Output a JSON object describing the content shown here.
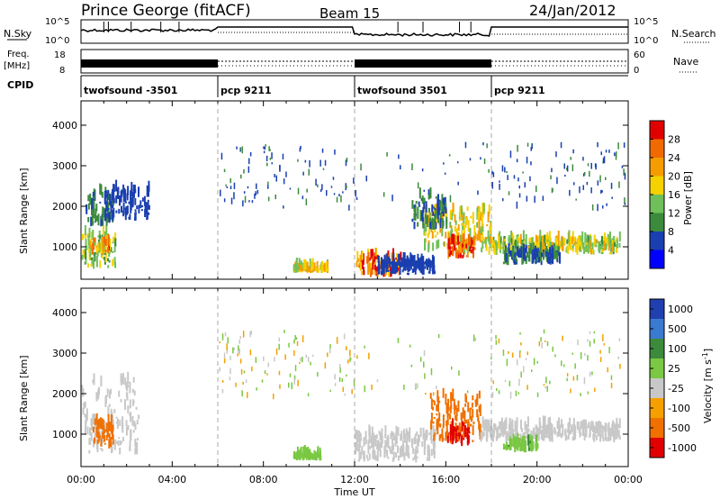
{
  "header": {
    "title": "Prince George (fitACF)",
    "beam": "Beam 15",
    "date": "24/Jan/2012"
  },
  "top_panels": {
    "nsky_label": "N.Sky",
    "nsky_ticks": [
      "10^5",
      "10^0"
    ],
    "nsearch_label": "N.Search",
    "freq_label_1": "Freq.",
    "freq_label_2": "[MHz]",
    "freq_ticks": [
      "18",
      "8"
    ],
    "nave_label": "Nave",
    "nave_ticks": [
      "60",
      "0"
    ],
    "cpid_label": "CPID"
  },
  "cpid_segments": [
    {
      "label": "twofsound -3501",
      "start_hour": 0
    },
    {
      "label": "pcp 9211",
      "start_hour": 6
    },
    {
      "label": "twofsound 3501",
      "start_hour": 12
    },
    {
      "label": "pcp 9211",
      "start_hour": 18
    }
  ],
  "x_axis": {
    "label": "Time UT",
    "ticks": [
      "00:00",
      "04:00",
      "08:00",
      "12:00",
      "16:00",
      "20:00",
      "00:00"
    ],
    "range_hours": [
      0,
      24
    ]
  },
  "chart_data": [
    {
      "type": "heatmap",
      "title": "",
      "xlabel": "Time UT",
      "ylabel": "Slant Range [km]",
      "yticks": [
        "1000",
        "2000",
        "3000",
        "4000"
      ],
      "xlim": [
        0,
        24
      ],
      "ylim": [
        200,
        4600
      ],
      "colorbar": {
        "label": "Power [dB]",
        "ticks": [
          "4",
          "8",
          "12",
          "16",
          "20",
          "24",
          "28"
        ],
        "range": [
          0,
          32
        ],
        "colors": [
          "#0000ff",
          "#1a3fb0",
          "#3c8a3c",
          "#6fbf5a",
          "#f5d100",
          "#f59c00",
          "#f06a00",
          "#e00000"
        ]
      },
      "regions": [
        {
          "t": [
            0.0,
            1.5
          ],
          "r": [
            450,
            1300
          ],
          "value": 14
        },
        {
          "t": [
            0.2,
            1.4
          ],
          "r": [
            1500,
            2300
          ],
          "value": 9
        },
        {
          "t": [
            1.0,
            3.0
          ],
          "r": [
            1600,
            2400
          ],
          "value": 6
        },
        {
          "t": [
            0.3,
            1.2
          ],
          "r": [
            800,
            1100
          ],
          "value": 22
        },
        {
          "t": [
            12.0,
            14.0
          ],
          "r": [
            250,
            750
          ],
          "value": 26
        },
        {
          "t": [
            13.0,
            15.5
          ],
          "r": [
            300,
            600
          ],
          "value": 6
        },
        {
          "t": [
            15.0,
            18.0
          ],
          "r": [
            800,
            1900
          ],
          "value": 18
        },
        {
          "t": [
            16.0,
            17.3
          ],
          "r": [
            700,
            1100
          ],
          "value": 28
        },
        {
          "t": [
            14.5,
            16.0
          ],
          "r": [
            1400,
            2200
          ],
          "value": 8
        },
        {
          "t": [
            18.0,
            23.6
          ],
          "r": [
            800,
            1150
          ],
          "value": 16
        },
        {
          "t": [
            18.5,
            21.0
          ],
          "r": [
            550,
            850
          ],
          "value": 8
        },
        {
          "t": [
            9.3,
            10.8
          ],
          "r": [
            350,
            450
          ],
          "value": 18
        }
      ]
    },
    {
      "type": "heatmap",
      "title": "",
      "xlabel": "Time UT",
      "ylabel": "Slant Range [km]",
      "yticks": [
        "1000",
        "2000",
        "3000",
        "4000"
      ],
      "xlim": [
        0,
        24
      ],
      "ylim": [
        200,
        4600
      ],
      "colorbar": {
        "label": "Velocity [m s^-1]",
        "ticks": [
          "1000",
          "500",
          "100",
          "25",
          "-25",
          "-100",
          "-500",
          "-1000"
        ],
        "colors": [
          "#2040b0",
          "#3a7ad0",
          "#3c8a3c",
          "#7ac843",
          "#c8c8c8",
          "#f5a000",
          "#f07000",
          "#e00000"
        ]
      },
      "regions": [
        {
          "t": [
            0.0,
            2.5
          ],
          "r": [
            450,
            2300
          ],
          "value": 0
        },
        {
          "t": [
            0.5,
            1.4
          ],
          "r": [
            600,
            1300
          ],
          "value": -200
        },
        {
          "t": [
            12.0,
            15.5
          ],
          "r": [
            300,
            1000
          ],
          "value": 0
        },
        {
          "t": [
            15.3,
            17.5
          ],
          "r": [
            800,
            1900
          ],
          "value": -250
        },
        {
          "t": [
            16.0,
            17.0
          ],
          "r": [
            700,
            1100
          ],
          "value": -600
        },
        {
          "t": [
            17.5,
            23.6
          ],
          "r": [
            800,
            1200
          ],
          "value": 0
        },
        {
          "t": [
            18.5,
            20.0
          ],
          "r": [
            550,
            750
          ],
          "value": 80
        },
        {
          "t": [
            9.3,
            10.5
          ],
          "r": [
            350,
            450
          ],
          "value": 60
        }
      ]
    }
  ]
}
